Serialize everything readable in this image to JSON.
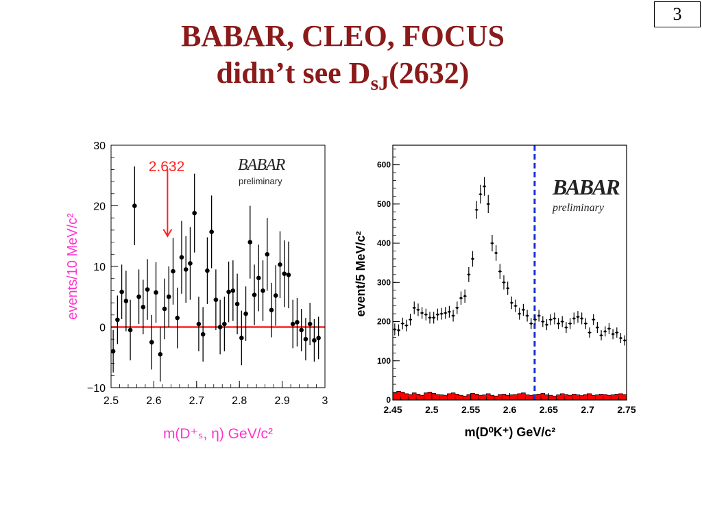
{
  "page_number": "3",
  "title": {
    "line1": "BABAR, CLEO, FOCUS",
    "line2_prefix": "didn’t see D",
    "line2_sub": "sJ",
    "line2_suffix": "(2632)"
  },
  "colors": {
    "title": "#8b1a1a",
    "left_label": "#ff33cc",
    "annotation": "#ff2020",
    "dashed_line": "#1a2fd6",
    "hist_fill": "#ff0000"
  },
  "chart_data": [
    {
      "type": "scatter",
      "title": "",
      "xlabel": "m(D⁺ₛ, η) GeV/c²",
      "ylabel": "events/10 MeV/c²",
      "xlim": [
        2.5,
        3.0
      ],
      "ylim": [
        -10,
        30
      ],
      "x_ticks": [
        "2.5",
        "2.6",
        "2.7",
        "2.8",
        "2.9",
        "3"
      ],
      "y_ticks": [
        "−10",
        "0",
        "10",
        "20",
        "30"
      ],
      "logo": {
        "text": "BABAR",
        "sub": "preliminary"
      },
      "annotation": {
        "label": "2.632",
        "x": 2.632,
        "y_top": 26,
        "y_tip": 15
      },
      "reference_line": {
        "y": 0
      },
      "points": [
        {
          "x": 2.505,
          "y": -4,
          "err": 3.5
        },
        {
          "x": 2.515,
          "y": 1.2,
          "err": 4
        },
        {
          "x": 2.525,
          "y": 5.8,
          "err": 4.5
        },
        {
          "x": 2.535,
          "y": 4.3,
          "err": 5
        },
        {
          "x": 2.545,
          "y": -0.5,
          "err": 5
        },
        {
          "x": 2.555,
          "y": 20,
          "err": 6.5
        },
        {
          "x": 2.565,
          "y": 5,
          "err": 4.5
        },
        {
          "x": 2.575,
          "y": 3.3,
          "err": 4.5
        },
        {
          "x": 2.585,
          "y": 6.2,
          "err": 5
        },
        {
          "x": 2.595,
          "y": -2.5,
          "err": 4.5
        },
        {
          "x": 2.605,
          "y": 5.7,
          "err": 5
        },
        {
          "x": 2.615,
          "y": -4.5,
          "err": 4.5
        },
        {
          "x": 2.625,
          "y": 3,
          "err": 5
        },
        {
          "x": 2.635,
          "y": 5,
          "err": 5
        },
        {
          "x": 2.645,
          "y": 9.2,
          "err": 5.5
        },
        {
          "x": 2.655,
          "y": 1.5,
          "err": 5
        },
        {
          "x": 2.665,
          "y": 11.5,
          "err": 6
        },
        {
          "x": 2.675,
          "y": 9.5,
          "err": 5.5
        },
        {
          "x": 2.685,
          "y": 10.5,
          "err": 6
        },
        {
          "x": 2.695,
          "y": 18.8,
          "err": 6.5
        },
        {
          "x": 2.705,
          "y": 0.5,
          "err": 4.5
        },
        {
          "x": 2.715,
          "y": -1.2,
          "err": 4.5
        },
        {
          "x": 2.725,
          "y": 9.3,
          "err": 5.5
        },
        {
          "x": 2.735,
          "y": 15.7,
          "err": 6
        },
        {
          "x": 2.745,
          "y": 4.5,
          "err": 5
        },
        {
          "x": 2.755,
          "y": 0,
          "err": 4.5
        },
        {
          "x": 2.765,
          "y": 0.5,
          "err": 4.5
        },
        {
          "x": 2.775,
          "y": 5.8,
          "err": 5
        },
        {
          "x": 2.785,
          "y": 6,
          "err": 5
        },
        {
          "x": 2.795,
          "y": 3.8,
          "err": 5
        },
        {
          "x": 2.805,
          "y": -1.8,
          "err": 4.5
        },
        {
          "x": 2.815,
          "y": 2.2,
          "err": 4.5
        },
        {
          "x": 2.825,
          "y": 14,
          "err": 6
        },
        {
          "x": 2.835,
          "y": 5.3,
          "err": 5
        },
        {
          "x": 2.845,
          "y": 8.1,
          "err": 5.5
        },
        {
          "x": 2.855,
          "y": 6,
          "err": 5
        },
        {
          "x": 2.865,
          "y": 12,
          "err": 6
        },
        {
          "x": 2.875,
          "y": 2.8,
          "err": 4.5
        },
        {
          "x": 2.885,
          "y": 5.2,
          "err": 5
        },
        {
          "x": 2.895,
          "y": 10.3,
          "err": 5.5
        },
        {
          "x": 2.905,
          "y": 8.8,
          "err": 5.5
        },
        {
          "x": 2.915,
          "y": 8.6,
          "err": 5.5
        },
        {
          "x": 2.925,
          "y": 0.5,
          "err": 4
        },
        {
          "x": 2.935,
          "y": 0.8,
          "err": 4
        },
        {
          "x": 2.945,
          "y": -0.5,
          "err": 3.5
        },
        {
          "x": 2.955,
          "y": -2,
          "err": 3.5
        },
        {
          "x": 2.965,
          "y": 0.5,
          "err": 3.5
        },
        {
          "x": 2.975,
          "y": -2.2,
          "err": 3.5
        },
        {
          "x": 2.985,
          "y": -1.8,
          "err": 3.5
        }
      ]
    },
    {
      "type": "scatter",
      "title": "",
      "xlabel": "m(D⁰K⁺) GeV/c²",
      "ylabel": "event/5 MeV/c²",
      "xlim": [
        2.45,
        2.75
      ],
      "ylim": [
        0,
        650
      ],
      "x_ticks": [
        "2.45",
        "2.5",
        "2.55",
        "2.6",
        "2.65",
        "2.7",
        "2.75"
      ],
      "y_ticks": [
        "0",
        "100",
        "200",
        "300",
        "400",
        "500",
        "600"
      ],
      "logo": {
        "text": "BABAR",
        "sub": "preliminary"
      },
      "reference_line": {
        "x": 2.632,
        "style": "dashed"
      },
      "series": [
        {
          "x": [
            2.4525,
            2.4575,
            2.4625,
            2.4675,
            2.4725,
            2.4775,
            2.4825,
            2.4875,
            2.4925,
            2.4975,
            2.5025,
            2.5075,
            2.5125,
            2.5175,
            2.5225,
            2.5275,
            2.5325,
            2.5375,
            2.5425,
            2.5475,
            2.5525,
            2.5575,
            2.5625,
            2.5675,
            2.5725,
            2.5775,
            2.5825,
            2.5875,
            2.5925,
            2.5975,
            2.6025,
            2.6075,
            2.6125,
            2.6175,
            2.6225,
            2.6275,
            2.6325,
            2.6375,
            2.6425,
            2.6475,
            2.6525,
            2.6575,
            2.6625,
            2.6675,
            2.6725,
            2.6775,
            2.6825,
            2.6875,
            2.6925,
            2.6975,
            2.7025,
            2.7075,
            2.7125,
            2.7175,
            2.7225,
            2.7275,
            2.7325,
            2.7375,
            2.7425,
            2.7475
          ],
          "y": [
            180,
            178,
            195,
            190,
            205,
            235,
            230,
            222,
            218,
            210,
            210,
            218,
            220,
            222,
            225,
            215,
            235,
            260,
            265,
            320,
            360,
            485,
            525,
            545,
            500,
            400,
            375,
            328,
            300,
            285,
            248,
            240,
            220,
            230,
            215,
            195,
            205,
            215,
            200,
            192,
            205,
            208,
            195,
            200,
            185,
            195,
            208,
            212,
            208,
            195,
            172,
            205,
            185,
            165,
            175,
            182,
            168,
            172,
            158,
            152
          ],
          "err": [
            15,
            15,
            15,
            15,
            15,
            16,
            16,
            15,
            15,
            15,
            15,
            15,
            15,
            15,
            15,
            15,
            16,
            17,
            17,
            19,
            20,
            23,
            24,
            24,
            23,
            21,
            20,
            19,
            18,
            17,
            16,
            16,
            15,
            15,
            15,
            14,
            14,
            15,
            14,
            14,
            14,
            15,
            14,
            14,
            14,
            14,
            15,
            15,
            15,
            14,
            13,
            14,
            14,
            13,
            13,
            14,
            13,
            13,
            13,
            13
          ]
        }
      ],
      "background_histogram": [
        18,
        22,
        20,
        16,
        14,
        18,
        15,
        12,
        18,
        20,
        17,
        14,
        13,
        12,
        16,
        18,
        15,
        12,
        10,
        14,
        17,
        15,
        12,
        13,
        16,
        12,
        10,
        14,
        15,
        12,
        13,
        14,
        16,
        18,
        13,
        12,
        14,
        15,
        17,
        13,
        12,
        10,
        13,
        16,
        14,
        12,
        15,
        13,
        11,
        14,
        16,
        12,
        13,
        15,
        14,
        12,
        13,
        15,
        16,
        14
      ]
    }
  ]
}
